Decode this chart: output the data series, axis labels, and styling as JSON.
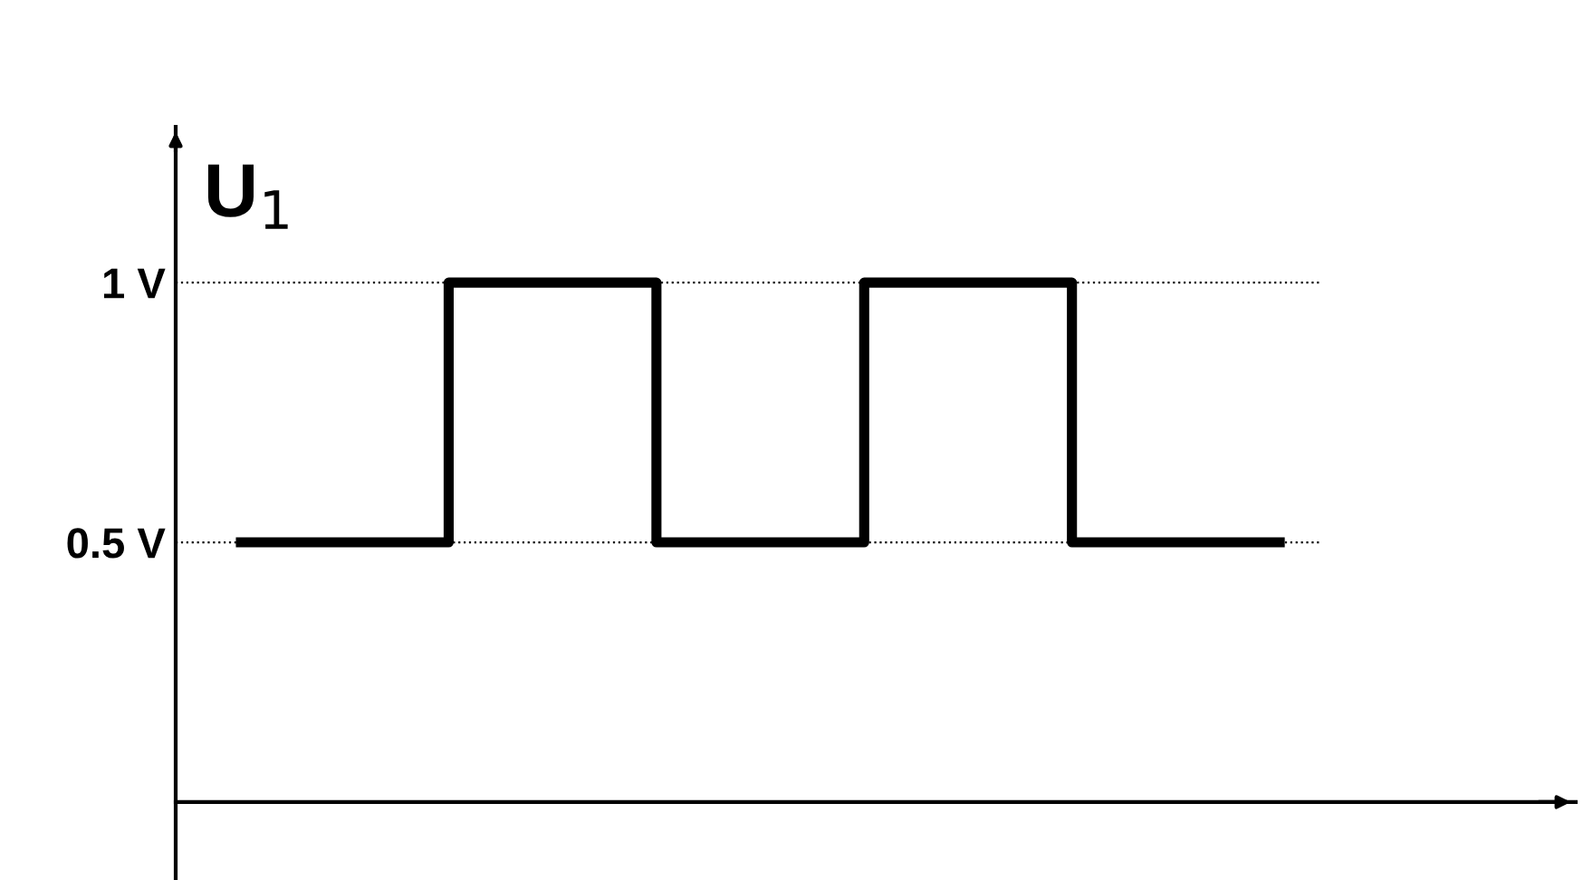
{
  "chart_data": {
    "type": "step",
    "ylabel": "U$_{1}$",
    "categories": [
      null,
      null,
      null,
      null,
      null,
      null
    ],
    "series": [
      {
        "color": "#000000",
        "values": [
          0.5,
          1,
          0.5,
          1,
          0.5,
          0.5
        ]
      }
    ],
    "ylim": [
      -0.15,
      1.3
    ],
    "yticks": [
      {
        "value": 1,
        "label": "1 V"
      },
      {
        "value": 0.5,
        "label": "0.5 V"
      }
    ],
    "grid": "y",
    "line_style": "solid",
    "marker": "none",
    "tick_labels": "y"
  }
}
